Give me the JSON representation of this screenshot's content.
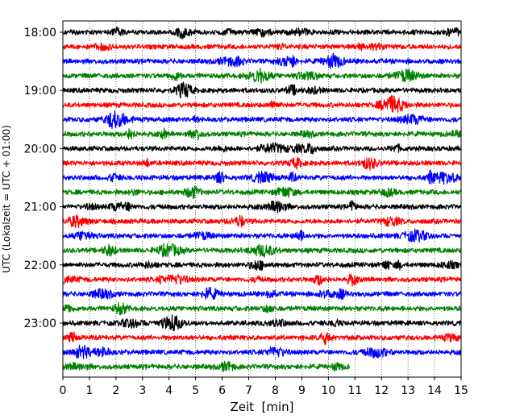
{
  "chart_data": {
    "type": "line",
    "title": "",
    "xlabel": "Zeit  [min]",
    "ylabel": "UTC (Lokalzeit = UTC + 01:00)",
    "xlim": [
      0,
      15
    ],
    "x_ticks": [
      "0",
      "1",
      "2",
      "3",
      "4",
      "5",
      "6",
      "7",
      "8",
      "9",
      "10",
      "11",
      "12",
      "13",
      "14",
      "15"
    ],
    "y_ticks": [
      "18:00",
      "19:00",
      "20:00",
      "21:00",
      "22:00",
      "23:00"
    ],
    "y_tick_rows": [
      0,
      4,
      8,
      12,
      16,
      20
    ],
    "grid": "vertical dotted",
    "legend": "none",
    "row_colors": [
      "#000000",
      "#ff0000",
      "#0000ff",
      "#008000"
    ],
    "rows": [
      {
        "start": "18:00",
        "end_min": 15
      },
      {
        "start": "18:15",
        "end_min": 15
      },
      {
        "start": "18:30",
        "end_min": 15
      },
      {
        "start": "18:45",
        "end_min": 15
      },
      {
        "start": "19:00",
        "end_min": 15
      },
      {
        "start": "19:15",
        "end_min": 15
      },
      {
        "start": "19:30",
        "end_min": 15
      },
      {
        "start": "19:45",
        "end_min": 15
      },
      {
        "start": "20:00",
        "end_min": 15
      },
      {
        "start": "20:15",
        "end_min": 15
      },
      {
        "start": "20:30",
        "end_min": 15
      },
      {
        "start": "20:45",
        "end_min": 15
      },
      {
        "start": "21:00",
        "end_min": 15
      },
      {
        "start": "21:15",
        "end_min": 15
      },
      {
        "start": "21:30",
        "end_min": 15
      },
      {
        "start": "21:45",
        "end_min": 15
      },
      {
        "start": "22:00",
        "end_min": 15
      },
      {
        "start": "22:15",
        "end_min": 15
      },
      {
        "start": "22:30",
        "end_min": 15
      },
      {
        "start": "22:45",
        "end_min": 15
      },
      {
        "start": "23:00",
        "end_min": 15
      },
      {
        "start": "23:15",
        "end_min": 15
      },
      {
        "start": "23:30",
        "end_min": 15
      },
      {
        "start": "23:45",
        "end_min": 10.8
      }
    ]
  }
}
